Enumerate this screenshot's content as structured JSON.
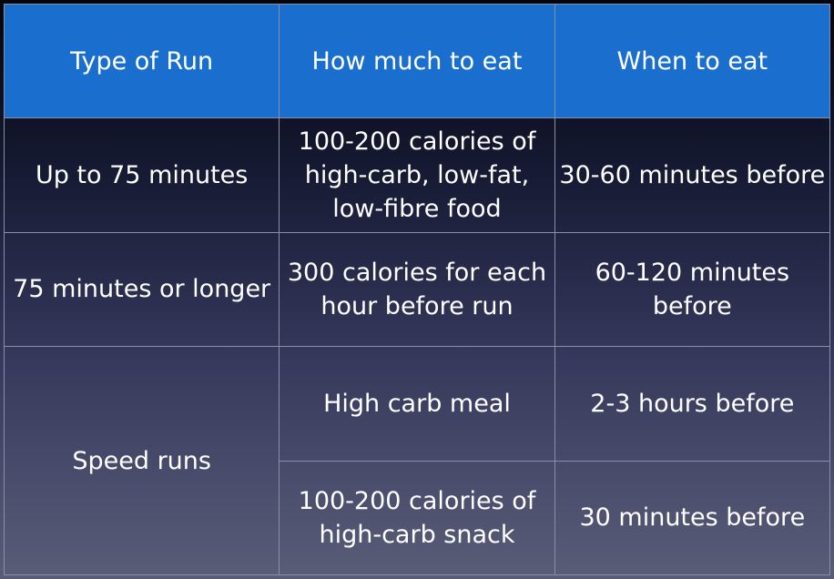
{
  "header": {
    "col1": "Type of Run",
    "col2": "How much to eat",
    "col3": "When to eat"
  },
  "rows": [
    {
      "type": "Up to 75 minutes",
      "amount": "100-200 calories of high-carb, low-fat, low-fibre food",
      "when": "30-60 minutes before"
    },
    {
      "type": "75 minutes or longer",
      "amount": "300 calories for each hour before run",
      "when": "60-120 minutes before"
    },
    {
      "type": "Speed runs",
      "amount": "High carb meal",
      "when": "2-3 hours before"
    },
    {
      "amount": "100-200 calories of high-carb snack",
      "when": "30 minutes before"
    }
  ]
}
